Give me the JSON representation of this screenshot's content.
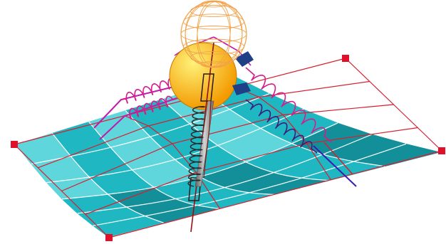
{
  "scene": {
    "colors": {
      "background": "#ffffff",
      "surface": "#1fb7c2",
      "surface_light": "#5fd6dc",
      "surface_dark": "#138f9a",
      "surface_grid": "#ffffff",
      "control_cage": "#d71f2e",
      "control_point": "#e0102a",
      "sphere_base": "#f39a00",
      "sphere_highlight": "#fff27a",
      "wire_sphere": "#f2a24a",
      "spring_magenta": "#d61c8c",
      "spring_purple": "#3b1f7a",
      "spring_dark": "#2b2b2b",
      "rod": "#8f8f8f",
      "link_magenta": "#c21aa8",
      "link_purple": "#3a1db0",
      "damper_outline": "#2a1a1a",
      "damper_dark_red": "#8e1412",
      "pointer_blue": "#1f3f86"
    },
    "icons": {
      "surface": "cyan-shaded-surface",
      "wire_sphere": "wireframe-sphere",
      "solid_sphere": "shaded-sphere",
      "control_point": "square-marker",
      "spring": "coil-spring",
      "damper": "dashpot"
    }
  }
}
